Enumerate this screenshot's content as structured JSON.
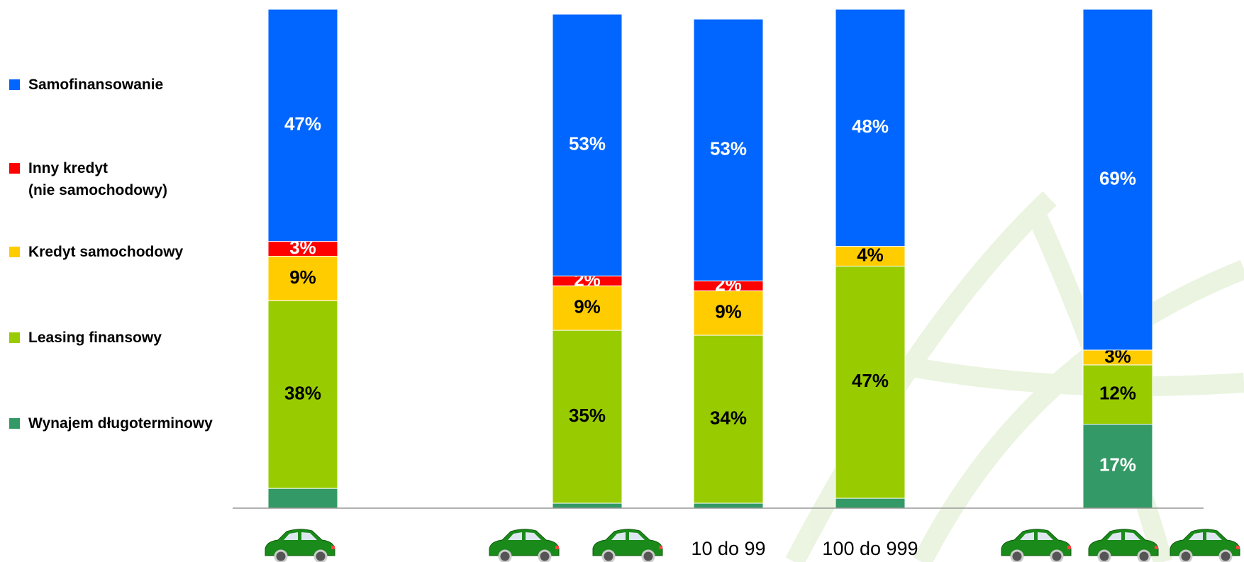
{
  "chart_data": {
    "type": "stacked_bar",
    "categories": [
      null,
      null,
      "10 do 99",
      "100 do 999",
      null
    ],
    "series": [
      {
        "name": "Wynajem długoterminowy",
        "color": "#339966",
        "values": [
          4,
          1,
          1,
          2,
          17
        ],
        "value_labels": [
          null,
          null,
          null,
          null,
          "17%"
        ]
      },
      {
        "name": "Leasing finansowy",
        "color": "#99cc00",
        "values": [
          38,
          35,
          34,
          47,
          12
        ],
        "value_labels": [
          "38%",
          "35%",
          "34%",
          "47%",
          "12%"
        ]
      },
      {
        "name": "Kredyt samochodowy",
        "color": "#ffcc00",
        "values": [
          9,
          9,
          9,
          4,
          3
        ],
        "value_labels": [
          "9%",
          "9%",
          "9%",
          "4%",
          "3%"
        ]
      },
      {
        "name": "Inny kredyt\n(nie samochodowy)",
        "color": "#ff0000",
        "values": [
          3,
          2,
          2,
          0,
          0
        ],
        "value_labels": [
          "3%",
          "2%",
          "2%",
          null,
          null
        ]
      },
      {
        "name": "Samofinansowanie",
        "color": "#0066ff",
        "values": [
          47,
          53,
          53,
          48,
          69
        ],
        "value_labels": [
          "47%",
          "53%",
          "53%",
          "48%",
          "69%"
        ]
      }
    ]
  }
}
